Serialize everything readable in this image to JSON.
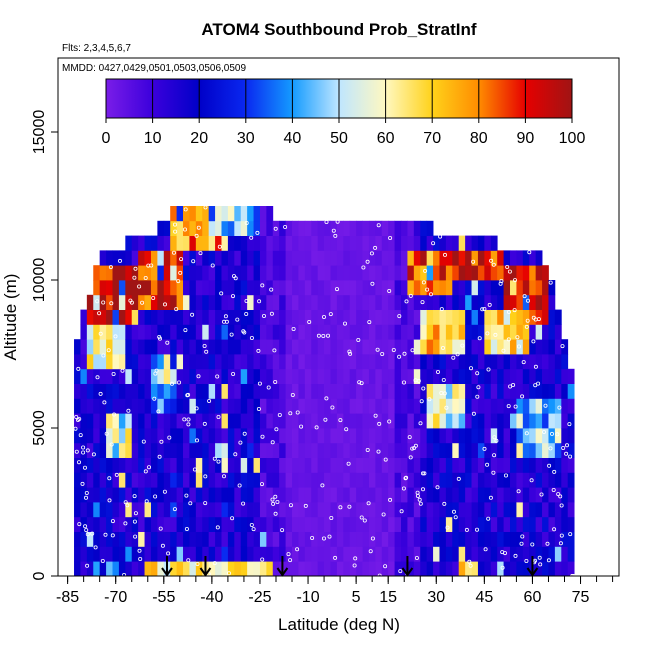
{
  "chart_data": {
    "type": "heatmap",
    "title": "ATOM4 Southbound Prob_StratInf",
    "subtitle_flights": "Flts: 2,3,4,5,6,7",
    "subtitle_dates": "MMDD: 0427,0429,0501,0503,0506,0509",
    "xlabel": "Latitude (deg N)",
    "ylabel": "Altitude (m)",
    "xlim": [
      -88,
      87
    ],
    "ylim": [
      0,
      17500
    ],
    "x_ticks": [
      -85,
      -70,
      -55,
      -40,
      -25,
      -10,
      5,
      15,
      30,
      45,
      60,
      75
    ],
    "x_tick_labels": [
      "-85",
      "-70",
      "-55",
      "-40",
      "-25",
      "-10",
      "5",
      "15",
      "30",
      "45",
      "60",
      "75"
    ],
    "y_ticks": [
      0,
      5000,
      10000,
      15000
    ],
    "y_tick_labels": [
      "0",
      "5000",
      "10000",
      "15000"
    ],
    "colorbar": {
      "min": 0,
      "max": 100,
      "ticks": [
        0,
        10,
        20,
        30,
        40,
        50,
        60,
        70,
        80,
        90,
        100
      ],
      "tick_labels": [
        "0",
        "10",
        "20",
        "30",
        "40",
        "50",
        "60",
        "70",
        "80",
        "90",
        "100"
      ],
      "colors": [
        "#7a1de8",
        "#3b00dc",
        "#0000c8",
        "#0a28f0",
        "#149bff",
        "#bfe6ff",
        "#fff8c0",
        "#ffd21a",
        "#ff8c00",
        "#e60000",
        "#a01414"
      ]
    },
    "bin_width_deg": 2,
    "bin_height_m": 500,
    "lat_range": [
      -83,
      73
    ],
    "top_altitude_profile": [
      {
        "lat": -83,
        "top_m": 7500
      },
      {
        "lat": -75,
        "top_m": 10500
      },
      {
        "lat": -68,
        "top_m": 11000
      },
      {
        "lat": -58,
        "top_m": 11500
      },
      {
        "lat": -50,
        "top_m": 12500
      },
      {
        "lat": -30,
        "top_m": 12500
      },
      {
        "lat": -20,
        "top_m": 12000
      },
      {
        "lat": 0,
        "top_m": 12000
      },
      {
        "lat": 20,
        "top_m": 12000
      },
      {
        "lat": 30,
        "top_m": 11500
      },
      {
        "lat": 50,
        "top_m": 11000
      },
      {
        "lat": 60,
        "top_m": 11000
      },
      {
        "lat": 66,
        "top_m": 10000
      },
      {
        "lat": 72,
        "top_m": 7000
      }
    ],
    "features": [
      {
        "lat_min": -78,
        "lat_max": -62,
        "alt_min": 8500,
        "alt_max": 10500,
        "value": 95
      },
      {
        "lat_min": -62,
        "lat_max": -48,
        "alt_min": 9000,
        "alt_max": 11000,
        "value": 90
      },
      {
        "lat_min": -52,
        "lat_max": -36,
        "alt_min": 11000,
        "alt_max": 12500,
        "value": 78
      },
      {
        "lat_min": -40,
        "lat_max": -25,
        "alt_min": 11500,
        "alt_max": 12500,
        "value": 45
      },
      {
        "lat_min": -78,
        "lat_max": -66,
        "alt_min": 7000,
        "alt_max": 8500,
        "value": 60
      },
      {
        "lat_min": -72,
        "lat_max": -64,
        "alt_min": 4000,
        "alt_max": 5500,
        "value": 55
      },
      {
        "lat_min": -58,
        "lat_max": -50,
        "alt_min": 5500,
        "alt_max": 7500,
        "value": 40
      },
      {
        "lat_min": 22,
        "lat_max": 35,
        "alt_min": 9500,
        "alt_max": 11000,
        "value": 85
      },
      {
        "lat_min": 35,
        "lat_max": 52,
        "alt_min": 10000,
        "alt_max": 11000,
        "value": 92
      },
      {
        "lat_min": 52,
        "lat_max": 66,
        "alt_min": 8500,
        "alt_max": 10500,
        "value": 95
      },
      {
        "lat_min": 26,
        "lat_max": 40,
        "alt_min": 7500,
        "alt_max": 9000,
        "value": 70
      },
      {
        "lat_min": 45,
        "lat_max": 60,
        "alt_min": 7500,
        "alt_max": 9000,
        "value": 65
      },
      {
        "lat_min": 28,
        "lat_max": 40,
        "alt_min": 5000,
        "alt_max": 6500,
        "value": 55
      },
      {
        "lat_min": 55,
        "lat_max": 70,
        "alt_min": 4000,
        "alt_max": 6000,
        "value": 45
      },
      {
        "lat_min": -60,
        "lat_max": -20,
        "alt_min": 0,
        "alt_max": 500,
        "value": 62
      },
      {
        "lat_min": 38,
        "lat_max": 44,
        "alt_min": 0,
        "alt_max": 500,
        "value": 68
      }
    ],
    "flight_marker_lats": [
      -54,
      -42,
      -18,
      21,
      60
    ],
    "marker_symbol": "↓"
  }
}
